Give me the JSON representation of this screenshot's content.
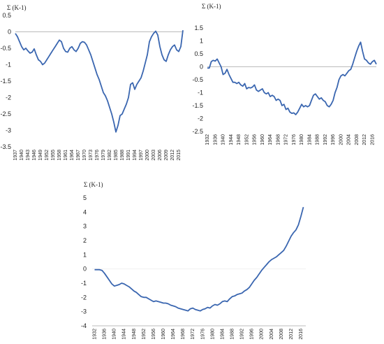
{
  "chart_data": [
    {
      "type": "line",
      "ylabel": "Σ (K-1)",
      "ylim": [
        -3.5,
        0.5
      ],
      "yticks": [
        "0.5",
        "0",
        "-0.5",
        "-1",
        "-1.5",
        "-2",
        "-2.5",
        "-3",
        "-3.5"
      ],
      "xticks": [
        "1937",
        "1940",
        "1943",
        "1946",
        "1949",
        "1952",
        "1955",
        "1958",
        "1961",
        "1964",
        "1967",
        "1970",
        "1973",
        "1976",
        "1979",
        "1982",
        "1985",
        "1988",
        "1991",
        "1994",
        "1997",
        "2000",
        "2003",
        "2006",
        "2009",
        "2012",
        "2015"
      ],
      "xlim": [
        1937,
        2017
      ],
      "color": "#3a66b0",
      "x": [
        1937,
        1938,
        1939,
        1940,
        1941,
        1942,
        1943,
        1944,
        1945,
        1946,
        1947,
        1948,
        1949,
        1950,
        1951,
        1952,
        1953,
        1954,
        1955,
        1956,
        1957,
        1958,
        1959,
        1960,
        1961,
        1962,
        1963,
        1964,
        1965,
        1966,
        1967,
        1968,
        1969,
        1970,
        1971,
        1972,
        1973,
        1974,
        1975,
        1976,
        1977,
        1978,
        1979,
        1980,
        1981,
        1982,
        1983,
        1984,
        1985,
        1986,
        1987,
        1988,
        1989,
        1990,
        1991,
        1992,
        1993,
        1994,
        1995,
        1996,
        1997,
        1998,
        1999,
        2000,
        2001,
        2002,
        2003,
        2004,
        2005,
        2006,
        2007,
        2008,
        2009,
        2010,
        2011,
        2012,
        2013,
        2014,
        2015,
        2016,
        2017
      ],
      "values": [
        -0.05,
        -0.15,
        -0.3,
        -0.45,
        -0.55,
        -0.5,
        -0.58,
        -0.65,
        -0.62,
        -0.52,
        -0.7,
        -0.85,
        -0.9,
        -1.0,
        -0.95,
        -0.85,
        -0.75,
        -0.65,
        -0.55,
        -0.45,
        -0.35,
        -0.25,
        -0.3,
        -0.5,
        -0.6,
        -0.62,
        -0.5,
        -0.45,
        -0.55,
        -0.6,
        -0.5,
        -0.35,
        -0.3,
        -0.32,
        -0.4,
        -0.55,
        -0.7,
        -0.9,
        -1.1,
        -1.3,
        -1.45,
        -1.65,
        -1.85,
        -1.95,
        -2.1,
        -2.3,
        -2.5,
        -2.75,
        -3.05,
        -2.85,
        -2.55,
        -2.5,
        -2.35,
        -2.2,
        -2.0,
        -1.6,
        -1.55,
        -1.75,
        -1.6,
        -1.5,
        -1.4,
        -1.2,
        -0.95,
        -0.7,
        -0.3,
        -0.15,
        -0.05,
        0.02,
        -0.1,
        -0.45,
        -0.7,
        -0.85,
        -0.9,
        -0.7,
        -0.55,
        -0.45,
        -0.4,
        -0.55,
        -0.6,
        -0.45,
        0.05
      ]
    },
    {
      "type": "line",
      "ylabel": "Σ (K-1)",
      "ylim": [
        -2.5,
        1.5
      ],
      "yticks": [
        "1.5",
        "1",
        "0.5",
        "0",
        "-0.5",
        "-1",
        "-1.5",
        "-2",
        "-2.5"
      ],
      "xticks": [
        "1932",
        "1936",
        "1940",
        "1944",
        "1948",
        "1952",
        "1956",
        "1960",
        "1964",
        "1968",
        "1972",
        "1976",
        "1980",
        "1984",
        "1988",
        "1992",
        "1996",
        "2000",
        "2004",
        "2008",
        "2012",
        "2016"
      ],
      "xlim": [
        1932,
        2018
      ],
      "color": "#3a66b0",
      "x": [
        1932,
        1933,
        1934,
        1935,
        1936,
        1937,
        1938,
        1939,
        1940,
        1941,
        1942,
        1943,
        1944,
        1945,
        1946,
        1947,
        1948,
        1949,
        1950,
        1951,
        1952,
        1953,
        1954,
        1955,
        1956,
        1957,
        1958,
        1959,
        1960,
        1961,
        1962,
        1963,
        1964,
        1965,
        1966,
        1967,
        1968,
        1969,
        1970,
        1971,
        1972,
        1973,
        1974,
        1975,
        1976,
        1977,
        1978,
        1979,
        1980,
        1981,
        1982,
        1983,
        1984,
        1985,
        1986,
        1987,
        1988,
        1989,
        1990,
        1991,
        1992,
        1993,
        1994,
        1995,
        1996,
        1997,
        1998,
        1999,
        2000,
        2001,
        2002,
        2003,
        2004,
        2005,
        2006,
        2007,
        2008,
        2009,
        2010,
        2011,
        2012,
        2013,
        2014,
        2015,
        2016,
        2017,
        2018
      ],
      "values": [
        -0.05,
        -0.05,
        0.2,
        0.25,
        0.22,
        0.3,
        0.15,
        0.0,
        -0.3,
        -0.25,
        -0.1,
        -0.3,
        -0.45,
        -0.6,
        -0.6,
        -0.65,
        -0.6,
        -0.7,
        -0.75,
        -0.65,
        -0.85,
        -0.8,
        -0.82,
        -0.78,
        -0.7,
        -0.9,
        -0.95,
        -0.9,
        -0.85,
        -1.0,
        -1.05,
        -1.0,
        -1.15,
        -1.1,
        -1.15,
        -1.3,
        -1.25,
        -1.3,
        -1.5,
        -1.45,
        -1.65,
        -1.6,
        -1.75,
        -1.8,
        -1.78,
        -1.85,
        -1.75,
        -1.6,
        -1.45,
        -1.55,
        -1.5,
        -1.55,
        -1.5,
        -1.3,
        -1.1,
        -1.05,
        -1.15,
        -1.25,
        -1.2,
        -1.3,
        -1.35,
        -1.5,
        -1.55,
        -1.45,
        -1.3,
        -1.0,
        -0.8,
        -0.5,
        -0.35,
        -0.3,
        -0.35,
        -0.25,
        -0.15,
        -0.1,
        0.1,
        0.35,
        0.6,
        0.8,
        0.95,
        0.6,
        0.3,
        0.25,
        0.15,
        0.1,
        0.2,
        0.25,
        0.1
      ]
    },
    {
      "type": "line",
      "ylabel": "Σ (K-1)",
      "ylim": [
        -4,
        5
      ],
      "yticks": [
        "5",
        "4",
        "3",
        "2",
        "1",
        "0",
        "-1",
        "-2",
        "-3",
        "-4"
      ],
      "xticks": [
        "1932",
        "1936",
        "1940",
        "1944",
        "1948",
        "1952",
        "1956",
        "1960",
        "1964",
        "1968",
        "1972",
        "1976",
        "1980",
        "1984",
        "1988",
        "1992",
        "1996",
        "2000",
        "2004",
        "2008",
        "2012",
        "2016"
      ],
      "xlim": [
        1931,
        2018
      ],
      "color": "#3a66b0",
      "x": [
        1932,
        1933,
        1934,
        1935,
        1936,
        1937,
        1938,
        1939,
        1940,
        1941,
        1942,
        1943,
        1944,
        1945,
        1946,
        1947,
        1948,
        1949,
        1950,
        1951,
        1952,
        1953,
        1954,
        1955,
        1956,
        1957,
        1958,
        1959,
        1960,
        1961,
        1962,
        1963,
        1964,
        1965,
        1966,
        1967,
        1968,
        1969,
        1970,
        1971,
        1972,
        1973,
        1974,
        1975,
        1976,
        1977,
        1978,
        1979,
        1980,
        1981,
        1982,
        1983,
        1984,
        1985,
        1986,
        1987,
        1988,
        1989,
        1990,
        1991,
        1992,
        1993,
        1994,
        1995,
        1996,
        1997,
        1998,
        1999,
        2000,
        2001,
        2002,
        2003,
        2004,
        2005,
        2006,
        2007,
        2008,
        2009,
        2010,
        2011,
        2012,
        2013,
        2014,
        2015,
        2016,
        2017
      ],
      "values": [
        -0.05,
        -0.05,
        -0.05,
        -0.1,
        -0.3,
        -0.55,
        -0.8,
        -1.05,
        -1.2,
        -1.15,
        -1.1,
        -1.0,
        -1.05,
        -1.15,
        -1.25,
        -1.4,
        -1.55,
        -1.65,
        -1.8,
        -1.95,
        -2.0,
        -2.0,
        -2.1,
        -2.2,
        -2.3,
        -2.25,
        -2.3,
        -2.35,
        -2.4,
        -2.4,
        -2.45,
        -2.55,
        -2.6,
        -2.65,
        -2.75,
        -2.8,
        -2.85,
        -2.9,
        -2.95,
        -2.8,
        -2.75,
        -2.85,
        -2.9,
        -2.95,
        -2.85,
        -2.8,
        -2.7,
        -2.75,
        -2.6,
        -2.5,
        -2.55,
        -2.45,
        -2.3,
        -2.25,
        -2.3,
        -2.1,
        -1.95,
        -1.9,
        -1.8,
        -1.75,
        -1.7,
        -1.55,
        -1.45,
        -1.3,
        -1.05,
        -0.8,
        -0.6,
        -0.35,
        -0.1,
        0.1,
        0.3,
        0.5,
        0.65,
        0.75,
        0.85,
        1.0,
        1.15,
        1.3,
        1.6,
        1.95,
        2.3,
        2.55,
        2.75,
        3.1,
        3.7,
        4.35
      ]
    }
  ]
}
